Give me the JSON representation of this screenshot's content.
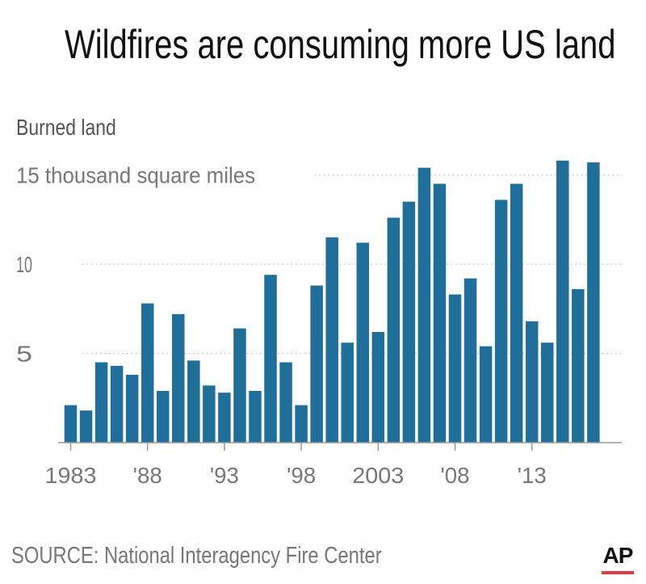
{
  "title": "Wildfires are consuming more US land",
  "source": "SOURCE: National Interagency Fire Center",
  "logo": {
    "text": "AP",
    "underline_color": "#e8383d"
  },
  "colors": {
    "bar": "#1f6f9a",
    "grid": "#bbbbbb",
    "axis": "#999999",
    "tick_text": "#777777"
  },
  "chart_data": {
    "type": "bar",
    "ylabel": "Burned land",
    "ylim": [
      0,
      17.5
    ],
    "yticks": [
      {
        "value": 5,
        "label": "5"
      },
      {
        "value": 10,
        "label": "10"
      },
      {
        "value": 15,
        "label": "15 thousand square miles"
      }
    ],
    "xticks": [
      {
        "category": "1983",
        "label": "1983"
      },
      {
        "category": "1988",
        "label": "'88"
      },
      {
        "category": "1993",
        "label": "'93"
      },
      {
        "category": "1998",
        "label": "'98"
      },
      {
        "category": "2003",
        "label": "2003"
      },
      {
        "category": "2008",
        "label": "'08"
      },
      {
        "category": "2013",
        "label": "'13"
      }
    ],
    "grid": "horizontal dotted",
    "categories": [
      "1983",
      "1984",
      "1985",
      "1986",
      "1987",
      "1988",
      "1989",
      "1990",
      "1991",
      "1992",
      "1993",
      "1994",
      "1995",
      "1996",
      "1997",
      "1998",
      "1999",
      "2000",
      "2001",
      "2002",
      "2003",
      "2004",
      "2005",
      "2006",
      "2007",
      "2008",
      "2009",
      "2010",
      "2011",
      "2012",
      "2013",
      "2014",
      "2015",
      "2016",
      "2017"
    ],
    "values": [
      2.1,
      1.8,
      4.5,
      4.3,
      3.8,
      7.8,
      2.9,
      7.2,
      4.6,
      3.2,
      2.8,
      6.4,
      2.9,
      9.4,
      4.5,
      2.1,
      8.8,
      11.5,
      5.6,
      11.2,
      6.2,
      12.6,
      13.5,
      15.4,
      14.5,
      8.3,
      9.2,
      5.4,
      13.6,
      14.5,
      6.8,
      5.6,
      15.8,
      8.6,
      15.7
    ]
  }
}
